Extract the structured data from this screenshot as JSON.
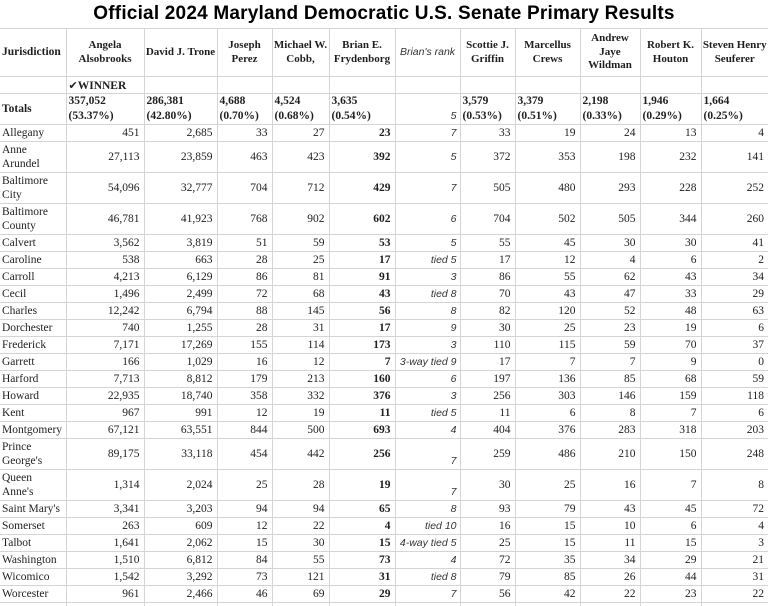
{
  "title": "Official 2024 Maryland Democratic U.S. Senate Primary Results",
  "colors": {
    "grid": "#d4d4d4",
    "text": "#1f1f1f",
    "rank_text": "#333333",
    "title_text": "#000000"
  },
  "table": {
    "columns": [
      "Jurisdiction",
      "Angela Alsobrooks",
      "David J. Trone",
      "Joseph Perez",
      "Michael W. Cobb,",
      "Brian E. Frydenborg",
      "Brian's rank",
      "Scottie J. Griffin",
      "Marcellus Crews",
      "Andrew Jaye Wildman",
      "Robert K. Houton",
      "Steven Henry Seuferer"
    ],
    "winner": {
      "check": "✔",
      "label": "WINNER"
    },
    "totals": {
      "label": "Totals",
      "rank": "5",
      "cells": [
        {
          "votes": "357,052",
          "pct": "(53.37%)"
        },
        {
          "votes": "286,381",
          "pct": "(42.80%)"
        },
        {
          "votes": "4,688",
          "pct": "(0.70%)"
        },
        {
          "votes": "4,524",
          "pct": "(0.68%)"
        },
        {
          "votes": "3,635",
          "pct": "(0.54%)"
        },
        {
          "votes": "3,579",
          "pct": "(0.53%)"
        },
        {
          "votes": "3,379",
          "pct": "(0.51%)"
        },
        {
          "votes": "2,198",
          "pct": "(0.33%)"
        },
        {
          "votes": "1,946",
          "pct": "(0.29%)"
        },
        {
          "votes": "1,664",
          "pct": "(0.25%)"
        }
      ]
    },
    "rows": [
      {
        "name": "Allegany",
        "values": [
          "451",
          "2,685",
          "33",
          "27",
          "23",
          "33",
          "19",
          "24",
          "13",
          "4"
        ],
        "rank": "7"
      },
      {
        "name": "Anne Arundel",
        "values": [
          "27,113",
          "23,859",
          "463",
          "423",
          "392",
          "372",
          "353",
          "198",
          "232",
          "141"
        ],
        "rank": "5",
        "tall": true
      },
      {
        "name": "Baltimore City",
        "values": [
          "54,096",
          "32,777",
          "704",
          "712",
          "429",
          "505",
          "480",
          "293",
          "228",
          "252"
        ],
        "rank": "7",
        "tall": true
      },
      {
        "name": "Baltimore County",
        "values": [
          "46,781",
          "41,923",
          "768",
          "902",
          "602",
          "704",
          "502",
          "505",
          "344",
          "260"
        ],
        "rank": "6",
        "tall": true
      },
      {
        "name": "Calvert",
        "values": [
          "3,562",
          "3,819",
          "51",
          "59",
          "53",
          "55",
          "45",
          "30",
          "30",
          "41"
        ],
        "rank": "5"
      },
      {
        "name": "Caroline",
        "values": [
          "538",
          "663",
          "28",
          "25",
          "17",
          "17",
          "12",
          "4",
          "6",
          "2"
        ],
        "rank": "tied 5"
      },
      {
        "name": "Carroll",
        "values": [
          "4,213",
          "6,129",
          "86",
          "81",
          "91",
          "86",
          "55",
          "62",
          "43",
          "34"
        ],
        "rank": "3"
      },
      {
        "name": "Cecil",
        "values": [
          "1,496",
          "2,499",
          "72",
          "68",
          "43",
          "70",
          "43",
          "47",
          "33",
          "29"
        ],
        "rank": "tied 8"
      },
      {
        "name": "Charles",
        "values": [
          "12,242",
          "6,794",
          "88",
          "145",
          "56",
          "82",
          "120",
          "52",
          "48",
          "63"
        ],
        "rank": "8"
      },
      {
        "name": "Dorchester",
        "values": [
          "740",
          "1,255",
          "28",
          "31",
          "17",
          "30",
          "25",
          "23",
          "19",
          "6"
        ],
        "rank": "9"
      },
      {
        "name": "Frederick",
        "values": [
          "7,171",
          "17,269",
          "155",
          "114",
          "173",
          "110",
          "115",
          "59",
          "70",
          "37"
        ],
        "rank": "3"
      },
      {
        "name": "Garrett",
        "values": [
          "166",
          "1,029",
          "16",
          "12",
          "7",
          "17",
          "7",
          "7",
          "9",
          "0"
        ],
        "rank": "3-way tied 9"
      },
      {
        "name": "Harford",
        "values": [
          "7,713",
          "8,812",
          "179",
          "213",
          "160",
          "197",
          "136",
          "85",
          "68",
          "59"
        ],
        "rank": "6"
      },
      {
        "name": "Howard",
        "values": [
          "22,935",
          "18,740",
          "358",
          "332",
          "376",
          "256",
          "303",
          "146",
          "159",
          "118"
        ],
        "rank": "3"
      },
      {
        "name": "Kent",
        "values": [
          "967",
          "991",
          "12",
          "19",
          "11",
          "11",
          "6",
          "8",
          "7",
          "6"
        ],
        "rank": "tied 5"
      },
      {
        "name": "Montgomery",
        "values": [
          "67,121",
          "63,551",
          "844",
          "500",
          "693",
          "404",
          "376",
          "283",
          "318",
          "203"
        ],
        "rank": "4"
      },
      {
        "name": "Prince George's",
        "values": [
          "89,175",
          "33,118",
          "454",
          "442",
          "256",
          "259",
          "486",
          "210",
          "150",
          "248"
        ],
        "rank": "7",
        "tall": true,
        "rank_bottom": true
      },
      {
        "name": "Queen Anne's",
        "values": [
          "1,314",
          "2,024",
          "25",
          "28",
          "19",
          "30",
          "25",
          "16",
          "7",
          "8"
        ],
        "rank": "7",
        "tall": true,
        "rank_bottom": true
      },
      {
        "name": "Saint Mary's",
        "values": [
          "3,341",
          "3,203",
          "94",
          "94",
          "65",
          "93",
          "79",
          "43",
          "45",
          "72"
        ],
        "rank": "8"
      },
      {
        "name": "Somerset",
        "values": [
          "263",
          "609",
          "12",
          "22",
          "4",
          "16",
          "15",
          "10",
          "6",
          "4"
        ],
        "rank": "tied 10"
      },
      {
        "name": "Talbot",
        "values": [
          "1,641",
          "2,062",
          "15",
          "30",
          "15",
          "25",
          "15",
          "11",
          "15",
          "3"
        ],
        "rank": "4-way tied 5"
      },
      {
        "name": "Washington",
        "values": [
          "1,510",
          "6,812",
          "84",
          "55",
          "73",
          "72",
          "35",
          "34",
          "29",
          "21"
        ],
        "rank": "4"
      },
      {
        "name": "Wicomico",
        "values": [
          "1,542",
          "3,292",
          "73",
          "121",
          "31",
          "79",
          "85",
          "26",
          "44",
          "31"
        ],
        "rank": "tied 8"
      },
      {
        "name": "Worcester",
        "values": [
          "961",
          "2,466",
          "46",
          "69",
          "29",
          "56",
          "42",
          "22",
          "23",
          "22"
        ],
        "rank": "7"
      }
    ]
  }
}
